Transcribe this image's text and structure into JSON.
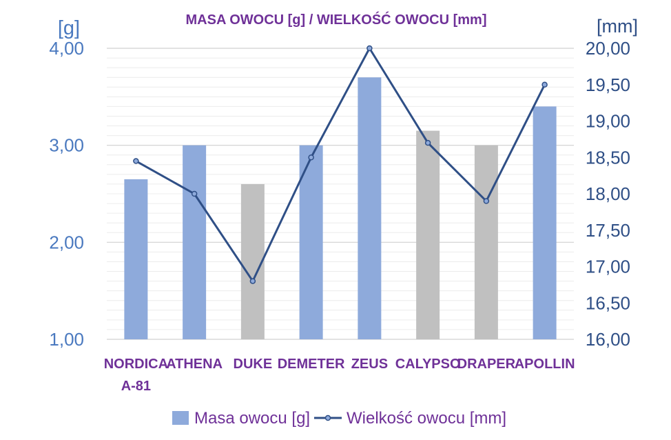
{
  "chart_data": {
    "type": "bar",
    "title": "MASA OWOCU [g] / WIELKOŚĆ OWOCU [mm]",
    "y_left_unit": "[g]",
    "y_right_unit": "[mm]",
    "y_left_ticks": [
      "1,00",
      "2,00",
      "3,00",
      "4,00"
    ],
    "y_right_ticks": [
      "16,00",
      "16,50",
      "17,00",
      "17,50",
      "18,00",
      "18,50",
      "19,00",
      "19,50",
      "20,00"
    ],
    "ylim_left": [
      1,
      4
    ],
    "ylim_right": [
      16,
      20
    ],
    "grid": true,
    "legend_position": "bottom",
    "categories": [
      [
        "NORDICA",
        "A-81"
      ],
      [
        "ATHENA"
      ],
      [
        "DUKE"
      ],
      [
        "DEMETER"
      ],
      [
        "ZEUS"
      ],
      [
        "CALYPSO"
      ],
      [
        "DRAPER"
      ],
      [
        "APOLLIN"
      ]
    ],
    "series": [
      {
        "name": "Masa owocu [g]",
        "type": "bar",
        "axis": "left",
        "values": [
          2.65,
          3.0,
          2.6,
          3.0,
          3.7,
          3.15,
          3.0,
          3.4
        ],
        "colors": [
          "#8eaadb",
          "#8eaadb",
          "#c0c0c0",
          "#8eaadb",
          "#8eaadb",
          "#c0c0c0",
          "#c0c0c0",
          "#8eaadb"
        ]
      },
      {
        "name": "Wielkość owocu [mm]",
        "type": "line",
        "axis": "right",
        "values": [
          18.45,
          18.0,
          16.8,
          18.5,
          20.0,
          18.7,
          17.9,
          19.5
        ],
        "color": "#2f4f86"
      }
    ]
  }
}
